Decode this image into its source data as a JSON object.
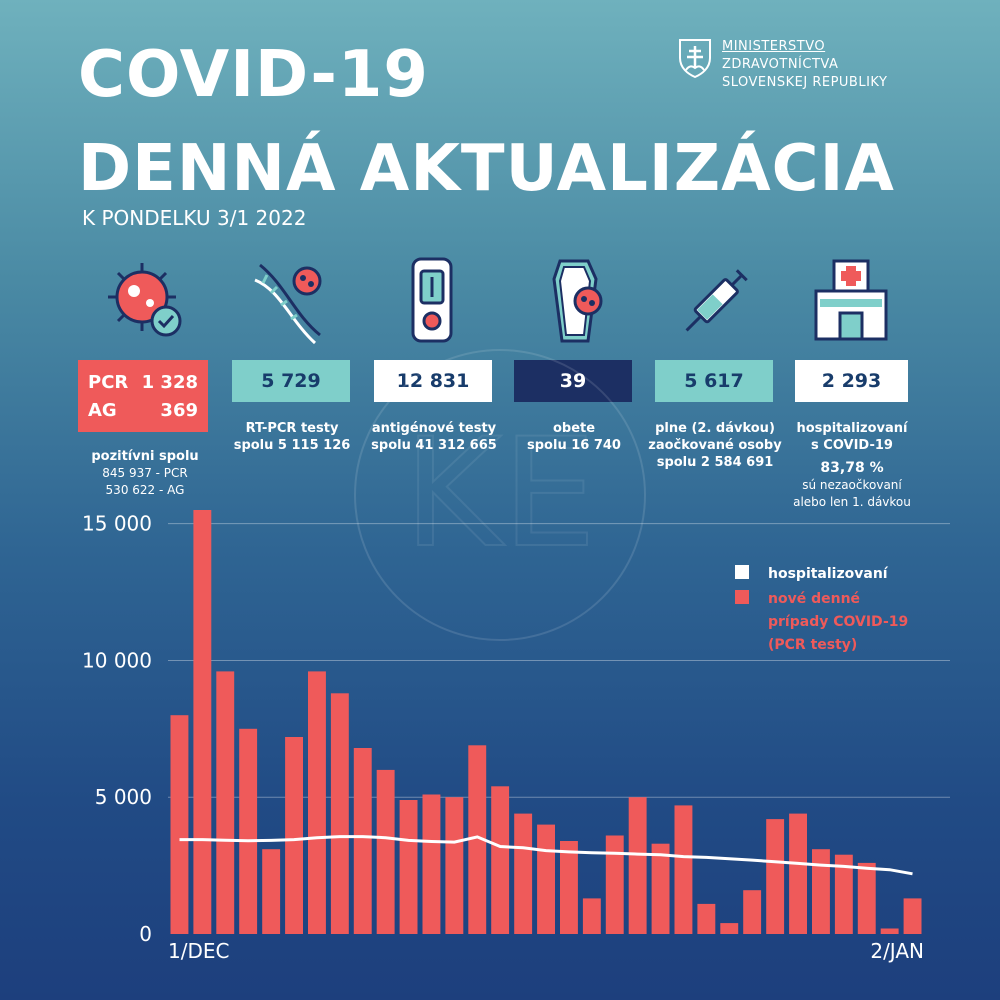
{
  "header": {
    "title_line1": "COVID-19",
    "title_line2": "DENNÁ AKTUALIZÁCIA",
    "date": "K PONDELKU 3/1 2022"
  },
  "ministry": {
    "line1": "MINISTERSTVO",
    "line2": "ZDRAVOTNÍCTVA",
    "line3": "SLOVENSKEJ REPUBLIKY"
  },
  "stats": {
    "positive": {
      "pcr_label": "PCR",
      "pcr_value": "1 328",
      "ag_label": "AG",
      "ag_value": "369",
      "caption": "pozitívni spolu",
      "pcr_total": "845 937 - PCR",
      "ag_total": "530 622 - AG"
    },
    "rtpcr": {
      "value": "5 729",
      "caption": "RT-PCR testy",
      "total": "spolu  5 115 126"
    },
    "antigen": {
      "value": "12 831",
      "caption": "antigénové testy",
      "total": "spolu  41 312 665"
    },
    "deaths": {
      "value": "39",
      "caption": "obete",
      "total": "spolu 16 740"
    },
    "vaccinated": {
      "value": "5 617",
      "caption1": "plne (2. dávkou)",
      "caption2": "zaočkované osoby",
      "total": "spolu 2 584 691"
    },
    "hospitalized": {
      "value": "2 293",
      "caption1": "hospitalizovaní",
      "caption2": "s COVID-19",
      "percent": "83,78 %",
      "note1": "sú nezaočkovaní",
      "note2": "alebo len 1. dávkou"
    }
  },
  "colors": {
    "red": "#ef5a5a",
    "teal": "#7fcfca",
    "navy": "#1c2f63",
    "white": "#ffffff"
  },
  "chart_data": {
    "type": "bar",
    "title": "",
    "x_start_label": "1/DEC",
    "x_end_label": "2/JAN",
    "ylim": [
      0,
      15500
    ],
    "yticks": [
      0,
      5000,
      10000,
      15000
    ],
    "ytick_labels": [
      "0",
      "5 000",
      "10 000",
      "15 000"
    ],
    "grid": true,
    "legend": [
      {
        "name": "hospitalizovaní",
        "color": "#ffffff"
      },
      {
        "name": "nové denné prípady COVID-19 (PCR testy)",
        "color": "#ef5a5a"
      }
    ],
    "legend_lines": [
      "hospitalizovaní",
      "nové denné",
      "prípady COVID-19",
      "(PCR testy)"
    ],
    "legend_position": "top-right",
    "series": [
      {
        "name": "nové denné prípady COVID-19 (PCR testy)",
        "kind": "bar",
        "values": [
          8000,
          15600,
          9600,
          7500,
          3100,
          7200,
          9600,
          8800,
          6800,
          6000,
          4900,
          5100,
          5000,
          6900,
          5400,
          4400,
          4000,
          3400,
          1300,
          3600,
          5000,
          3300,
          4700,
          1100,
          400,
          1600,
          4200,
          4400,
          3100,
          2900,
          2600,
          200,
          1300
        ]
      },
      {
        "name": "hospitalizovaní",
        "kind": "line",
        "values": [
          3450,
          3450,
          3430,
          3410,
          3420,
          3450,
          3520,
          3560,
          3560,
          3520,
          3420,
          3380,
          3360,
          3550,
          3200,
          3150,
          3050,
          3000,
          2970,
          2950,
          2920,
          2900,
          2830,
          2800,
          2750,
          2700,
          2640,
          2580,
          2520,
          2470,
          2400,
          2350,
          2200
        ]
      }
    ]
  }
}
